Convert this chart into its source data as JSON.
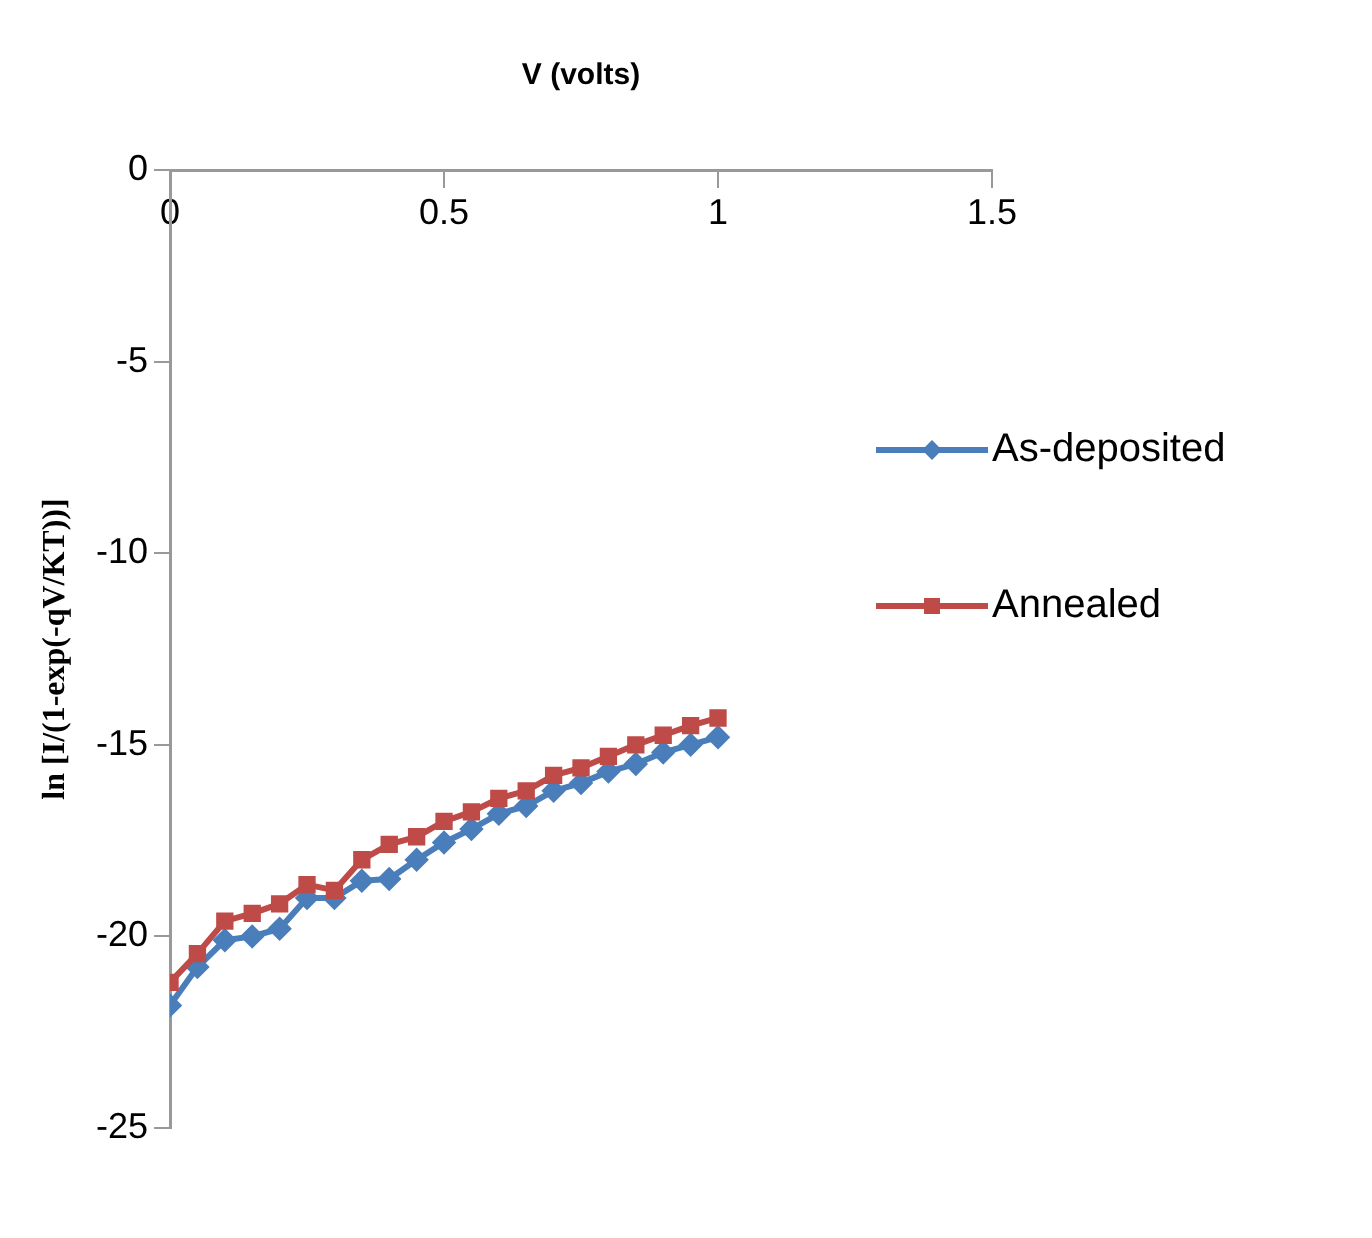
{
  "chart_data": {
    "type": "line",
    "xlabel": "V (volts)",
    "ylabel": "ln [I/(1-exp(-qV/KT))]",
    "x": [
      0,
      0.05,
      0.1,
      0.15,
      0.2,
      0.25,
      0.3,
      0.35,
      0.4,
      0.45,
      0.5,
      0.55,
      0.6,
      0.65,
      0.7,
      0.75,
      0.8,
      0.85,
      0.9,
      0.95,
      1.0
    ],
    "series": [
      {
        "name": "As-deposited",
        "color": "#4a7ebb",
        "marker": "diamond",
        "values": [
          -21.8,
          -20.8,
          -20.1,
          -20.0,
          -19.8,
          -19.0,
          -19.0,
          -18.55,
          -18.5,
          -18.0,
          -17.55,
          -17.2,
          -16.8,
          -16.6,
          -16.2,
          -16.0,
          -15.7,
          -15.5,
          -15.2,
          -15.0,
          -14.8
        ]
      },
      {
        "name": "Annealed",
        "color": "#be4b48",
        "marker": "square",
        "values": [
          -21.2,
          -20.45,
          -19.6,
          -19.4,
          -19.15,
          -18.65,
          -18.8,
          -18.0,
          -17.6,
          -17.4,
          -17.0,
          -16.75,
          -16.4,
          -16.2,
          -15.8,
          -15.6,
          -15.3,
          -15.0,
          -14.75,
          -14.5,
          -14.3
        ]
      }
    ],
    "xlim": [
      0,
      1.5
    ],
    "xticks": [
      0,
      0.5,
      1,
      1.5
    ],
    "ylim": [
      -25,
      0
    ],
    "yticks": [
      0,
      -5,
      -10,
      -15,
      -20,
      -25
    ],
    "grid": false,
    "legend": "right",
    "line_style": "solid"
  }
}
